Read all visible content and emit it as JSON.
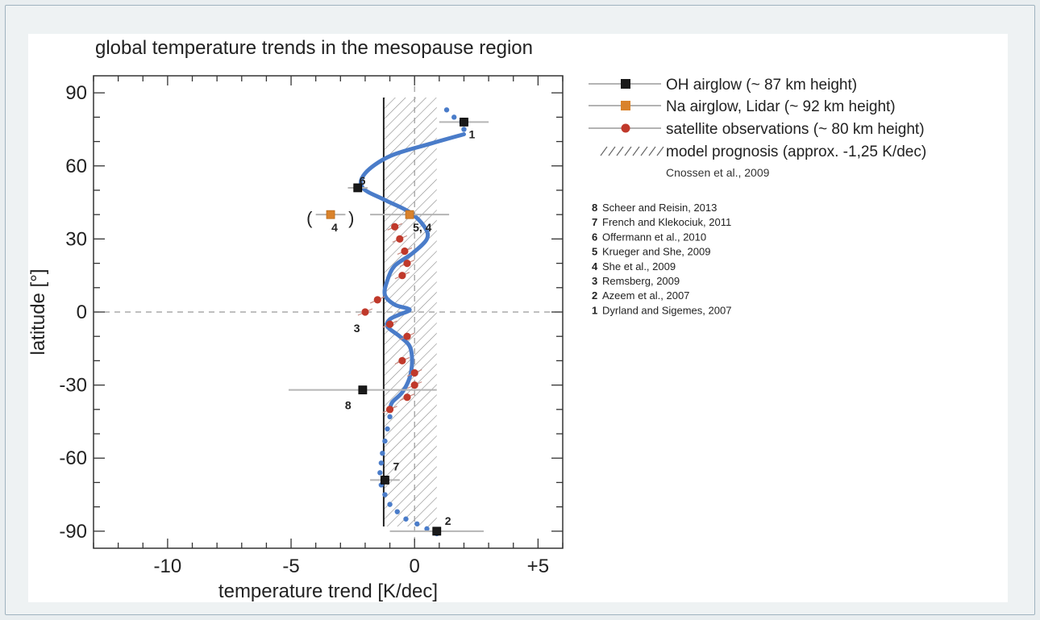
{
  "chart_data": {
    "type": "scatter",
    "title": "global temperature trends in the mesopause region",
    "xlabel": "temperature trend [K/dec]",
    "ylabel": "latitude [°]",
    "xlim": [
      -13,
      6
    ],
    "ylim": [
      -97,
      97
    ],
    "x_ticks": [
      {
        "value": -10,
        "label": "-10"
      },
      {
        "value": -5,
        "label": "-5"
      },
      {
        "value": 0,
        "label": "0"
      },
      {
        "value": 5,
        "label": "+5"
      }
    ],
    "y_ticks": [
      {
        "value": 90,
        "label": "90"
      },
      {
        "value": 60,
        "label": "60"
      },
      {
        "value": 30,
        "label": "30"
      },
      {
        "value": 0,
        "label": "0"
      },
      {
        "value": -30,
        "label": "-30"
      },
      {
        "value": -60,
        "label": "-60"
      },
      {
        "value": -90,
        "label": "-90"
      }
    ],
    "grid": false,
    "zero_lines": {
      "x": 0,
      "y": 0,
      "style": "dashed"
    },
    "model_band": {
      "x_min": -1.25,
      "x_max": 0.9
    },
    "model_line_x": -1.25,
    "legend": {
      "placement": "right",
      "entries": [
        {
          "label": "OH airglow (~ 87 km height)",
          "marker": "square",
          "color": "#1a1a1a"
        },
        {
          "label": "Na airglow, Lidar (~ 92 km height)",
          "marker": "square",
          "color": "#d9822b"
        },
        {
          "label": "satellite observations (~ 80 km height)",
          "marker": "circle",
          "color": "#c0392b"
        },
        {
          "label": "model prognosis (approx. -1,25 K/dec)",
          "marker": "hatch",
          "color": "#555555"
        }
      ],
      "source": "Cnossen et al., 2009"
    },
    "series": [
      {
        "name": "OH airglow (~ 87 km height)",
        "color": "#1a1a1a",
        "points": [
          {
            "x": 2.0,
            "y": 78,
            "xerr": [
              1.0,
              1.0
            ],
            "label": "1"
          },
          {
            "x": -2.3,
            "y": 51,
            "xerr": [
              0.4,
              0.4
            ],
            "label": "6"
          },
          {
            "x": -2.1,
            "y": -32,
            "xerr": [
              3.0,
              3.0
            ],
            "label": "8"
          },
          {
            "x": 0.9,
            "y": -90,
            "xerr": [
              1.9,
              1.9
            ],
            "label": "2"
          },
          {
            "x": -1.2,
            "y": -69,
            "xerr": [
              0.6,
              0.6
            ],
            "label": "7"
          }
        ]
      },
      {
        "name": "Na airglow, Lidar (~ 92 km height)",
        "color": "#d9822b",
        "points": [
          {
            "x": -3.4,
            "y": 40,
            "xerr": [
              0.6,
              0.6
            ],
            "label": "4"
          },
          {
            "x": -0.2,
            "y": 40,
            "xerr": [
              1.6,
              1.6
            ],
            "label": "5, 4"
          }
        ]
      },
      {
        "name": "satellite observations (~ 80 km height)",
        "color": "#c0392b",
        "points": [
          {
            "x": -0.8,
            "y": 35
          },
          {
            "x": -0.6,
            "y": 30
          },
          {
            "x": -0.4,
            "y": 25
          },
          {
            "x": -0.3,
            "y": 20
          },
          {
            "x": -0.5,
            "y": 15
          },
          {
            "x": -1.5,
            "y": 5
          },
          {
            "x": -2.0,
            "y": 0
          },
          {
            "x": -1.0,
            "y": -5
          },
          {
            "x": -0.3,
            "y": -10
          },
          {
            "x": -0.5,
            "y": -20
          },
          {
            "x": 0.0,
            "y": -25
          },
          {
            "x": 0.0,
            "y": -30
          },
          {
            "x": -0.3,
            "y": -35
          },
          {
            "x": -1.0,
            "y": -40
          }
        ],
        "ref_label": {
          "x": -2.3,
          "y": -5,
          "text": "3"
        }
      },
      {
        "name": "",
        "type": "line",
        "color": "#4a7cc9",
        "solid_points": [
          [
            2.0,
            73
          ],
          [
            0.6,
            69
          ],
          [
            -1.0,
            64
          ],
          [
            -2.0,
            57
          ],
          [
            -2.1,
            51
          ],
          [
            -1.2,
            46
          ],
          [
            -0.2,
            41
          ],
          [
            0.4,
            35
          ],
          [
            0.5,
            30
          ],
          [
            -0.1,
            24
          ],
          [
            -0.8,
            19
          ],
          [
            -1.1,
            13
          ],
          [
            -1.2,
            7
          ],
          [
            -0.8,
            3
          ],
          [
            -0.2,
            1
          ],
          [
            -0.6,
            -1
          ],
          [
            -1.0,
            -3
          ],
          [
            -1.1,
            -6
          ],
          [
            -0.6,
            -10
          ],
          [
            -0.2,
            -14
          ],
          [
            -0.1,
            -20
          ],
          [
            -0.2,
            -27
          ],
          [
            -0.5,
            -33
          ],
          [
            -0.9,
            -37
          ],
          [
            -1.0,
            -40
          ]
        ],
        "dotted_points": [
          [
            1.3,
            83
          ],
          [
            1.6,
            80
          ],
          [
            1.9,
            78
          ],
          [
            2.0,
            75
          ],
          [
            -1.0,
            -40
          ],
          [
            -1.0,
            -43
          ],
          [
            -1.1,
            -48
          ],
          [
            -1.2,
            -53
          ],
          [
            -1.3,
            -58
          ],
          [
            -1.35,
            -62
          ],
          [
            -1.4,
            -66
          ],
          [
            -1.35,
            -71
          ],
          [
            -1.2,
            -75
          ],
          [
            -1.0,
            -79
          ],
          [
            -0.7,
            -82
          ],
          [
            -0.35,
            -85
          ],
          [
            0.1,
            -87
          ],
          [
            0.5,
            -89
          ],
          [
            0.9,
            -91
          ]
        ]
      }
    ],
    "references": [
      {
        "num": "8",
        "text": "Scheer and Reisin, 2013"
      },
      {
        "num": "7",
        "text": "French and Klekociuk, 2011"
      },
      {
        "num": "6",
        "text": "Offermann et al., 2010"
      },
      {
        "num": "5",
        "text": "Krueger and She, 2009"
      },
      {
        "num": "4",
        "text": "She et al., 2009"
      },
      {
        "num": "3",
        "text": "Remsberg, 2009"
      },
      {
        "num": "2",
        "text": "Azeem et al., 2007"
      },
      {
        "num": "1",
        "text": "Dyrland and Sigemes, 2007"
      }
    ]
  }
}
